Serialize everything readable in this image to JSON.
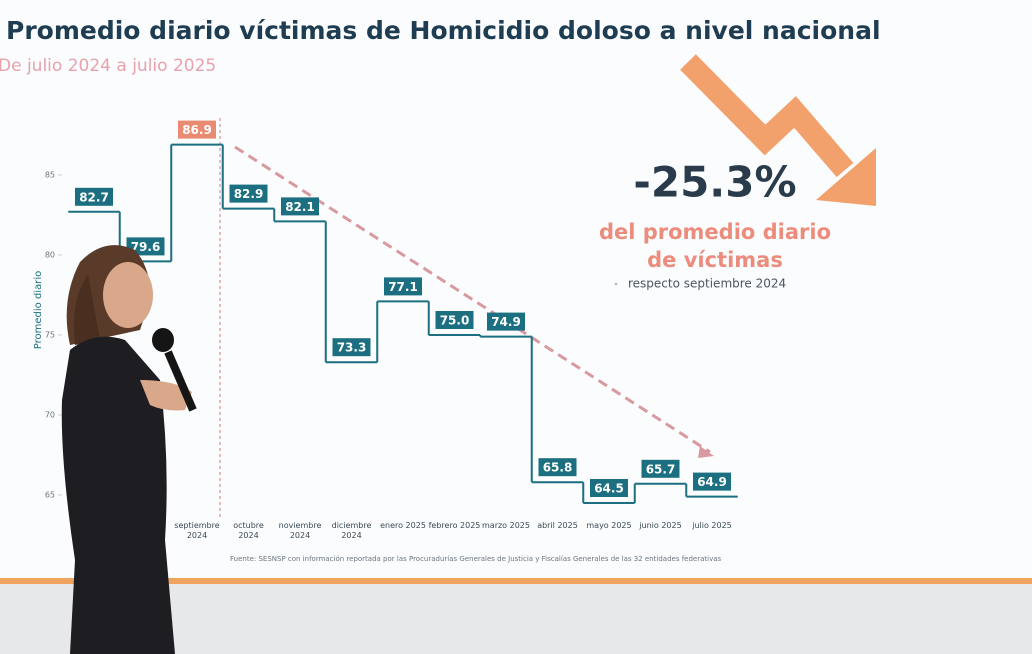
{
  "chart_data": {
    "type": "step",
    "title": "Promedio diario víctimas de Homicidio doloso a nivel nacional",
    "subtitle": "De julio 2024 a julio 2025",
    "y_label": "Promedio diario",
    "categories": [
      null,
      null,
      "septiembre 2024",
      "octubre 2024",
      "noviembre 2024",
      "diciembre 2024",
      "enero 2025",
      "febrero 2025",
      "marzo 2025",
      "abril 2025",
      "mayo 2025",
      "junio 2025",
      "julio 2025"
    ],
    "values": [
      82.7,
      79.6,
      86.9,
      82.9,
      82.1,
      73.3,
      77.1,
      75.0,
      74.9,
      65.8,
      64.5,
      65.7,
      64.9
    ],
    "value_labels": [
      "82.7",
      "79.6",
      "86.9",
      "82.9",
      "82.1",
      "73.3",
      "77.1",
      "75.0",
      "74.9",
      "65.8",
      "64.5",
      "65.7",
      "64.9"
    ],
    "color": "#1b6f80",
    "peak_label_color": "#e98a72",
    "ylim": [
      63.5,
      89
    ],
    "yticks": [
      65,
      70,
      75,
      80,
      85
    ],
    "annotation_value": "-25.3%",
    "annotation_text": "del promedio diario de víctimas",
    "annotation_note": "respecto septiembre 2024",
    "source": "Fuente: SESNSP con información reportada por las Procuradurías Generales de Justicia y Fiscalías Generales de las 32 entidades federativas"
  }
}
